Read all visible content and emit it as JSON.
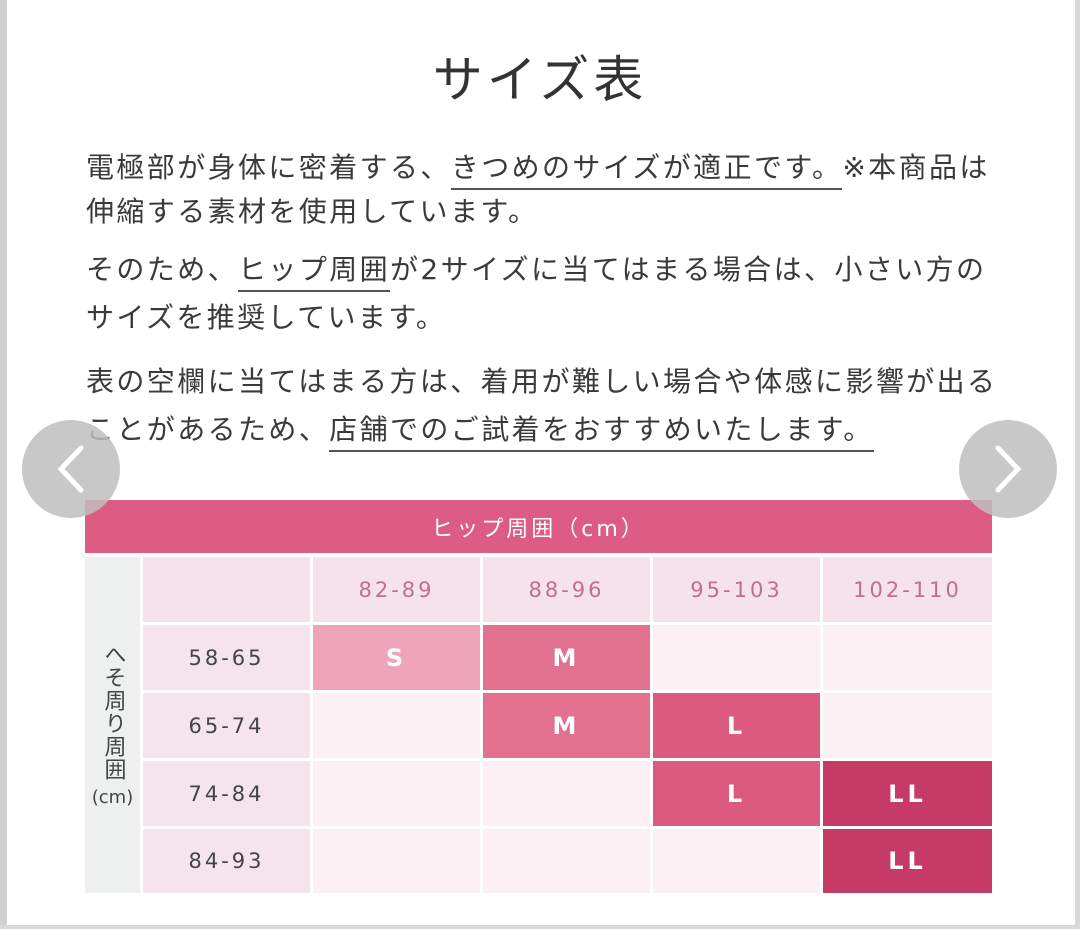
{
  "title": "サイズ表",
  "lines": [
    [
      {
        "t": "電極部が身体に密着する、",
        "u": false
      },
      {
        "t": "きつめのサイズが適正です。",
        "u": true
      },
      {
        "t": "※本商品は",
        "u": false
      }
    ],
    [
      {
        "t": "伸縮する素材を使用しています。",
        "u": false
      }
    ],
    [
      {
        "t": "そのため、",
        "u": false
      },
      {
        "t": "ヒップ周囲",
        "u": true
      },
      {
        "t": "が2サイズに当てはまる場合は、小さい方の",
        "u": false
      }
    ],
    [
      {
        "t": "サイズを推奨しています。",
        "u": false
      }
    ],
    [
      {
        "t": "表の空欄に当てはまる方は、着用が難しい場合や体感に影響が出る",
        "u": false
      }
    ],
    [
      {
        "t": "ことがあるため、",
        "u": false
      },
      {
        "t": "店舗でのご試着をおすすめいたします。",
        "u": true
      }
    ]
  ],
  "nav": {
    "prev_icon": "chevron-left-icon",
    "next_icon": "chevron-right-icon"
  },
  "table": {
    "header": "ヒップ周囲（cm）",
    "row_axis_label": "へそ周り周囲",
    "row_axis_unit": "(cm)",
    "columns": [
      "82-89",
      "88-96",
      "95-103",
      "102-110"
    ],
    "rows": [
      {
        "label": "58-65",
        "cells": [
          "S",
          "M",
          "",
          ""
        ]
      },
      {
        "label": "65-74",
        "cells": [
          "",
          "M",
          "L",
          ""
        ]
      },
      {
        "label": "74-84",
        "cells": [
          "",
          "",
          "L",
          "LL"
        ]
      },
      {
        "label": "84-93",
        "cells": [
          "",
          "",
          "",
          "LL"
        ]
      }
    ],
    "colors": {
      "header": "#dc5c84",
      "S": "#eea5b9",
      "M": "#e2718f",
      "L": "#dc5a80",
      "LL": "#c63b66",
      "empty": "#fdf0f4"
    }
  }
}
